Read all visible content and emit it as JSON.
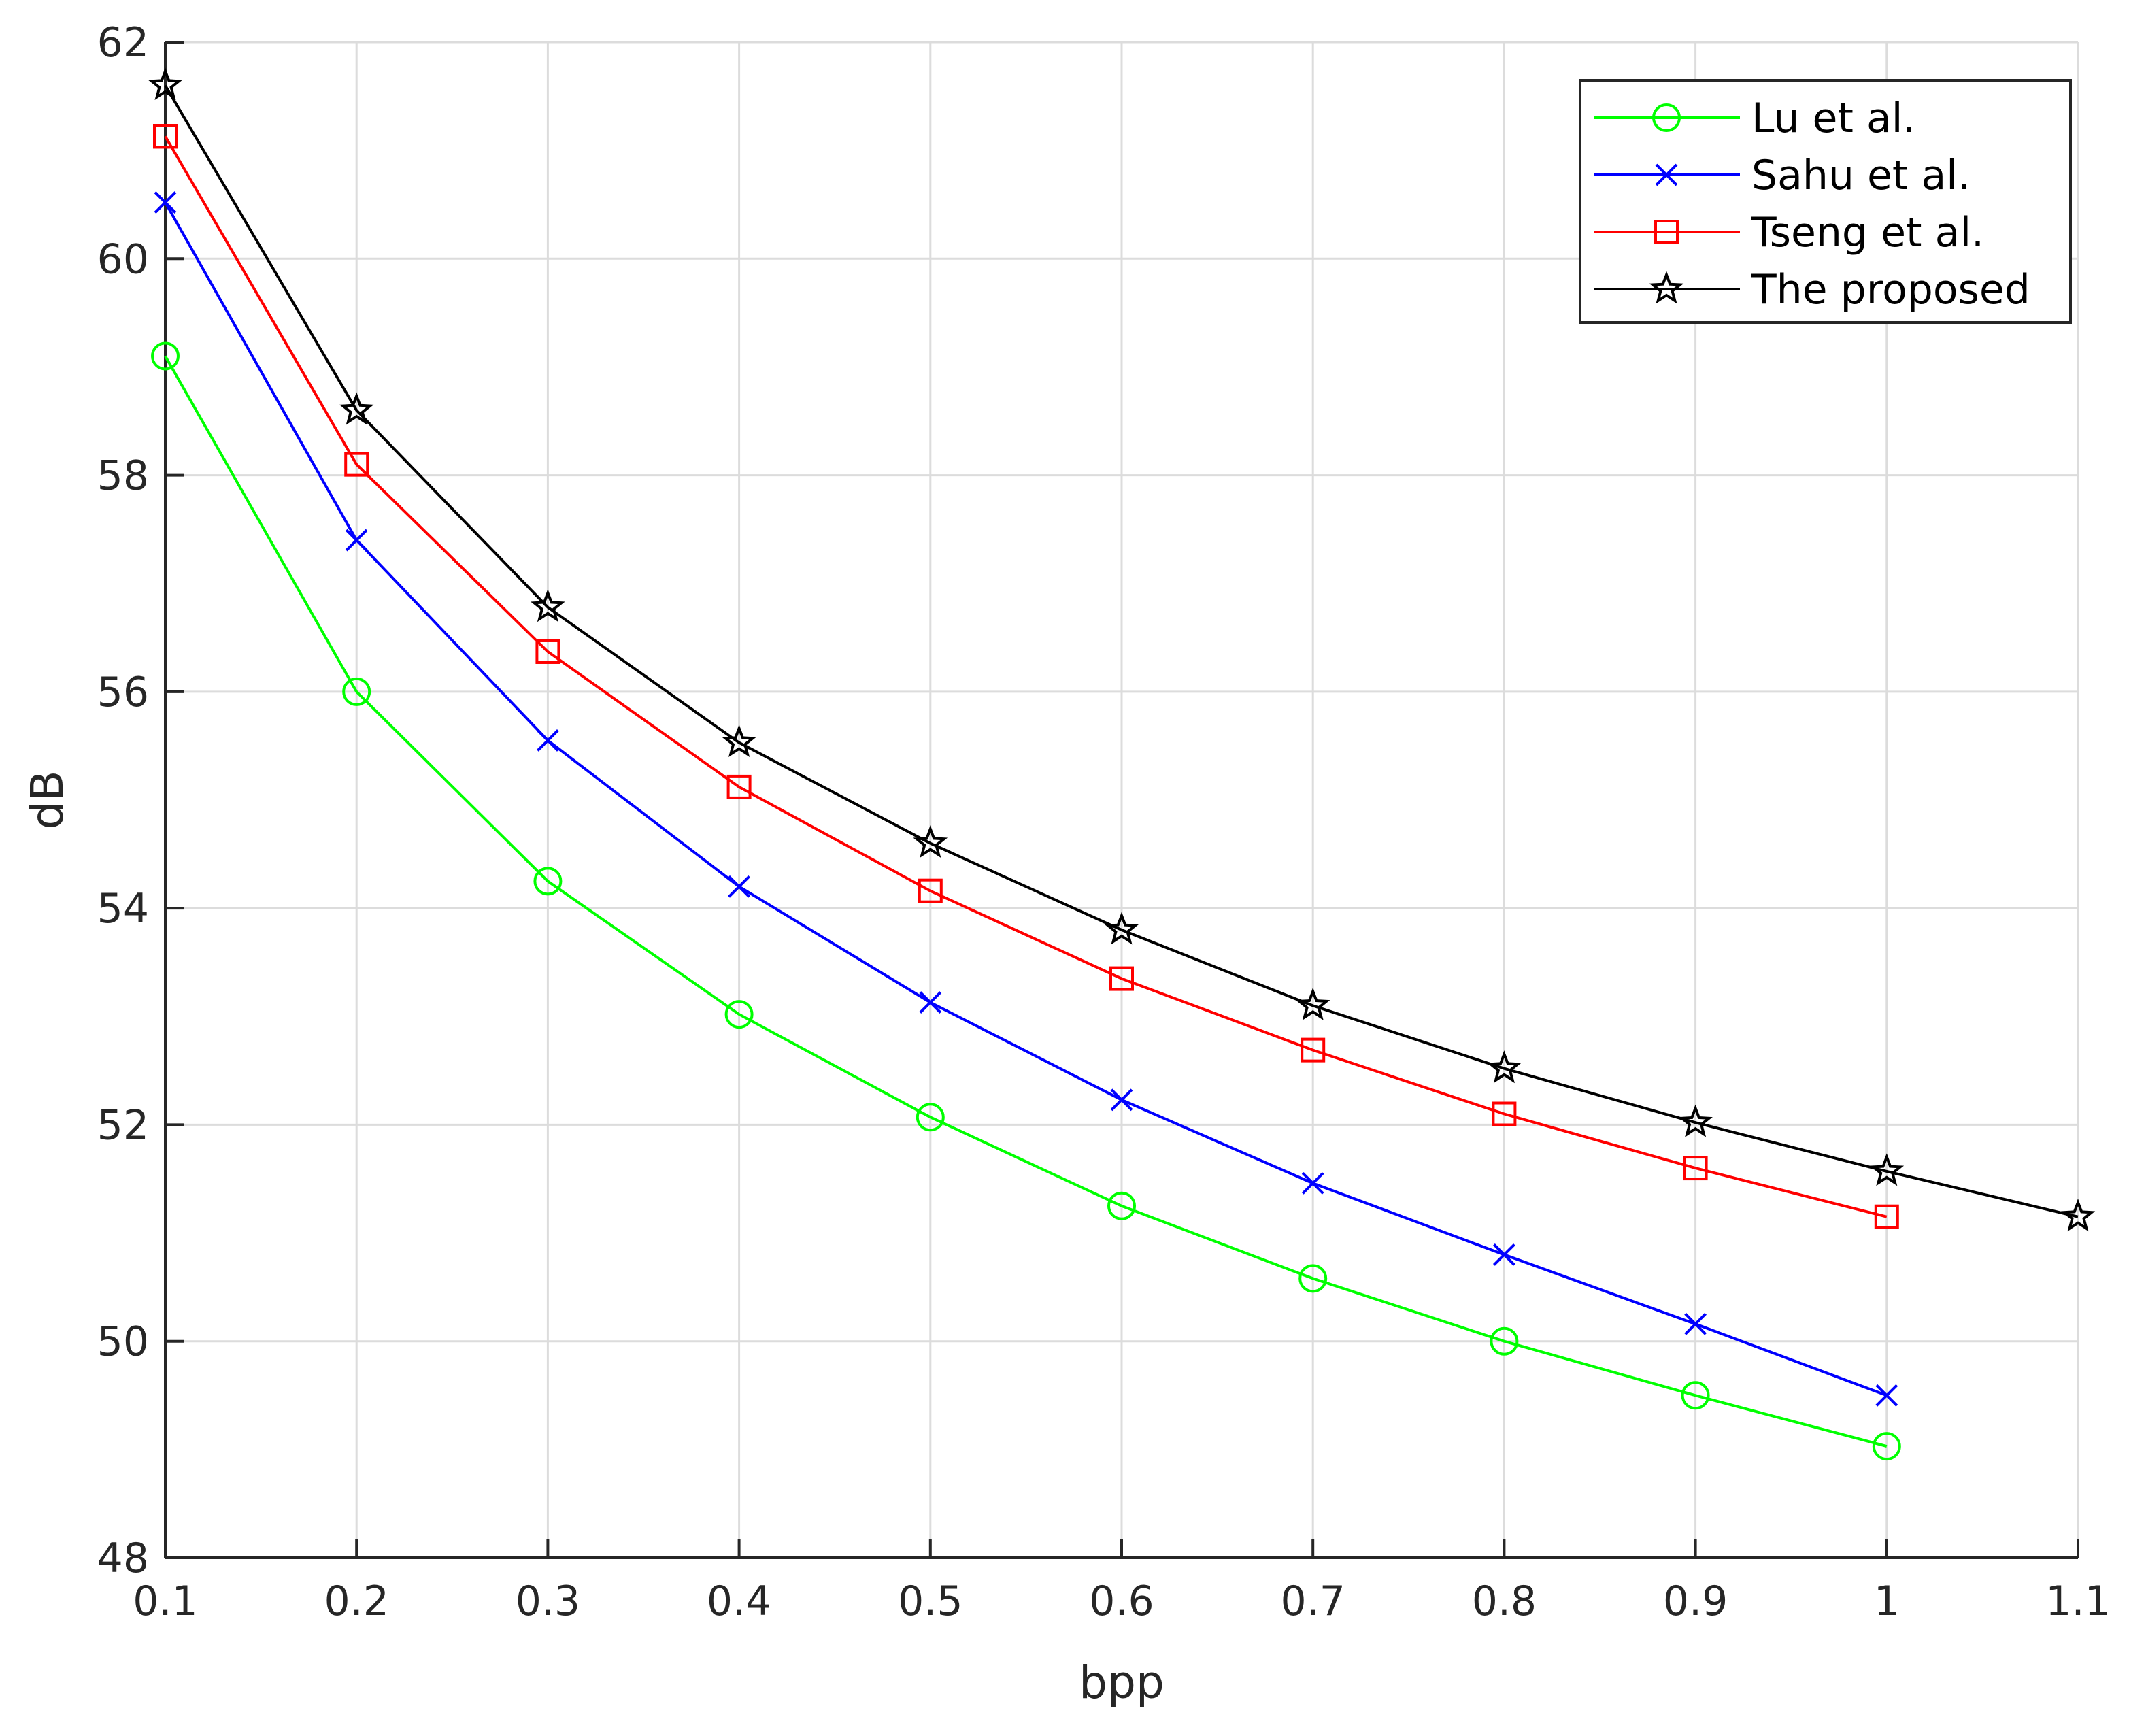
{
  "chart_data": {
    "type": "line",
    "title": "",
    "xlabel": "bpp",
    "ylabel": "dB",
    "xlim": [
      0.1,
      1.1
    ],
    "ylim": [
      48,
      62
    ],
    "grid": true,
    "legend_position": "top-right",
    "xticks": [
      0.1,
      0.2,
      0.3,
      0.4,
      0.5,
      0.6,
      0.7,
      0.8,
      0.9,
      1,
      1.1
    ],
    "xtick_labels": [
      "0.1",
      "0.2",
      "0.3",
      "0.4",
      "0.5",
      "0.6",
      "0.7",
      "0.8",
      "0.9",
      "1",
      "1.1"
    ],
    "yticks": [
      48,
      50,
      52,
      54,
      56,
      58,
      60,
      62
    ],
    "ytick_labels": [
      "48",
      "50",
      "52",
      "54",
      "56",
      "58",
      "60",
      "62"
    ],
    "series": [
      {
        "name": "Lu et al.",
        "color": "#00ff00",
        "marker": "circle",
        "x": [
          0.1,
          0.2,
          0.3,
          0.4,
          0.5,
          0.6,
          0.7,
          0.8,
          0.9,
          1.0
        ],
        "y": [
          59.1,
          56.0,
          54.25,
          53.02,
          52.07,
          51.25,
          50.58,
          50.0,
          49.5,
          49.03
        ]
      },
      {
        "name": "Sahu et al.",
        "color": "#0000ff",
        "marker": "x",
        "x": [
          0.1,
          0.2,
          0.3,
          0.4,
          0.5,
          0.6,
          0.7,
          0.8,
          0.9,
          1.0
        ],
        "y": [
          60.52,
          57.4,
          55.55,
          54.2,
          53.13,
          52.23,
          51.46,
          50.8,
          50.16,
          49.5
        ]
      },
      {
        "name": "Tseng et al.",
        "color": "#ff0000",
        "marker": "square",
        "x": [
          0.1,
          0.2,
          0.3,
          0.4,
          0.5,
          0.6,
          0.7,
          0.8,
          0.9,
          1.0
        ],
        "y": [
          61.13,
          58.1,
          56.37,
          55.12,
          54.16,
          53.35,
          52.69,
          52.1,
          51.6,
          51.15
        ]
      },
      {
        "name": "The proposed",
        "color": "#000000",
        "marker": "star",
        "x": [
          0.1,
          0.2,
          0.3,
          0.4,
          0.5,
          0.6,
          0.7,
          0.8,
          0.9,
          1.0,
          1.1
        ],
        "y": [
          61.6,
          58.6,
          56.78,
          55.53,
          54.6,
          53.8,
          53.1,
          52.52,
          52.02,
          51.57,
          51.15
        ]
      }
    ]
  }
}
